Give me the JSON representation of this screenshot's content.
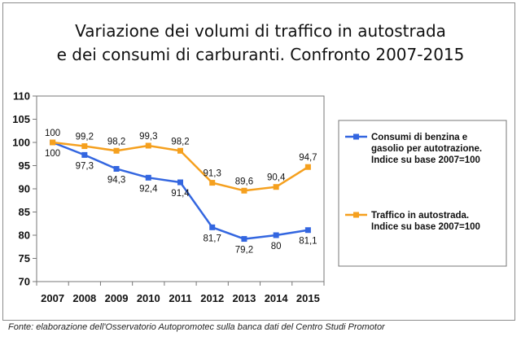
{
  "title_line1": "Variazione dei volumi di traffico in autostrada",
  "title_line2": "e dei consumi di carburanti. Confronto 2007-2015",
  "source": "Fonte: elaborazione dell'Osservatorio Autopromotec sulla banca dati del Centro Studi Promotor",
  "chart_data": {
    "type": "line",
    "categories": [
      "2007",
      "2008",
      "2009",
      "2010",
      "2011",
      "2012",
      "2013",
      "2014",
      "2015"
    ],
    "ylim": [
      70,
      110
    ],
    "yticks": [
      "70",
      "75",
      "80",
      "85",
      "90",
      "95",
      "100",
      "105",
      "110"
    ],
    "series": [
      {
        "name": "Consumi di benzina e gasolio per autotrazione. Indice su base 2007=100",
        "legend_lines": [
          "Consumi di benzina e",
          "gasolio per autotrazione.",
          "Indice su base 2007=100"
        ],
        "color": "#3366e0",
        "values": [
          100,
          97.3,
          94.3,
          92.4,
          91.4,
          81.7,
          79.2,
          80,
          81.1
        ],
        "labels": [
          "100",
          "97,3",
          "94,3",
          "92,4",
          "91,4",
          "81,7",
          "79,2",
          "80",
          "81,1"
        ]
      },
      {
        "name": "Traffico in autostrada. Indice su base 2007=100",
        "legend_lines": [
          "Traffico in autostrada.",
          "Indice su base 2007=100"
        ],
        "color": "#f5a01e",
        "values": [
          100,
          99.2,
          98.2,
          99.3,
          98.2,
          91.3,
          89.6,
          90.4,
          94.7
        ],
        "labels": [
          "100",
          "99,2",
          "98,2",
          "99,3",
          "98,2",
          "91,3",
          "89,6",
          "90,4",
          "94,7"
        ]
      }
    ]
  }
}
